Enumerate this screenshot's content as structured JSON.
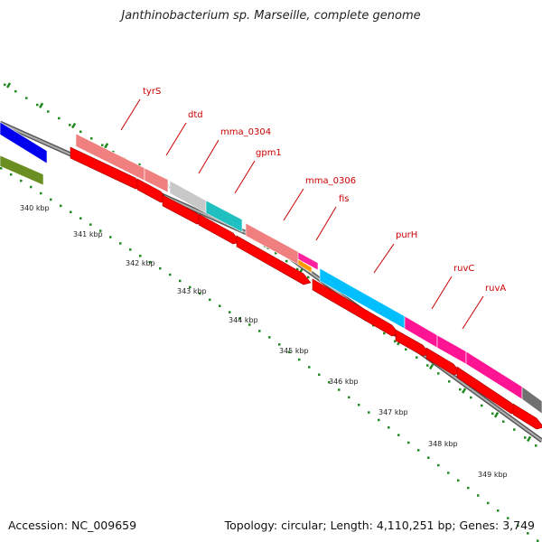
{
  "title": "Janthinobacterium sp. Marseille, complete genome",
  "footer": {
    "accession": "Accession: NC_009659",
    "summary": "Topology: circular; Length: 4,110,251 bp; Genes: 3,749"
  },
  "colors": {
    "backbone": "#8a8a8a",
    "cds": "#ff0000",
    "label_line": "#cc0000",
    "gc_dots": "#1f8a1f"
  },
  "ticks": [
    "340 kbp",
    "341 kbp",
    "342 kbp",
    "343 kbp",
    "344 kbp",
    "345 kbp",
    "346 kbp",
    "347 kbp",
    "348 kbp",
    "349 kbp"
  ],
  "genes": [
    {
      "label": "",
      "color": "#0000ee"
    },
    {
      "label": "",
      "color": "#6b8e23"
    },
    {
      "label": "tyrS",
      "color": "#f08080"
    },
    {
      "label": "dtd",
      "color": "#f08080"
    },
    {
      "label": "mma_0304",
      "color": "#c8c8c8"
    },
    {
      "label": "gpm1",
      "color": "#20c0c0"
    },
    {
      "label": "mma_0306",
      "color": "#f08080"
    },
    {
      "label": "fis",
      "color": "#ff20a0"
    },
    {
      "label": "",
      "color": "#ff9900"
    },
    {
      "label": "purH",
      "color": "#00bfff"
    },
    {
      "label": "ruvC",
      "color": "#ff1493"
    },
    {
      "label": "ruvA",
      "color": "#ff1493"
    },
    {
      "label": "",
      "color": "#707070"
    }
  ]
}
